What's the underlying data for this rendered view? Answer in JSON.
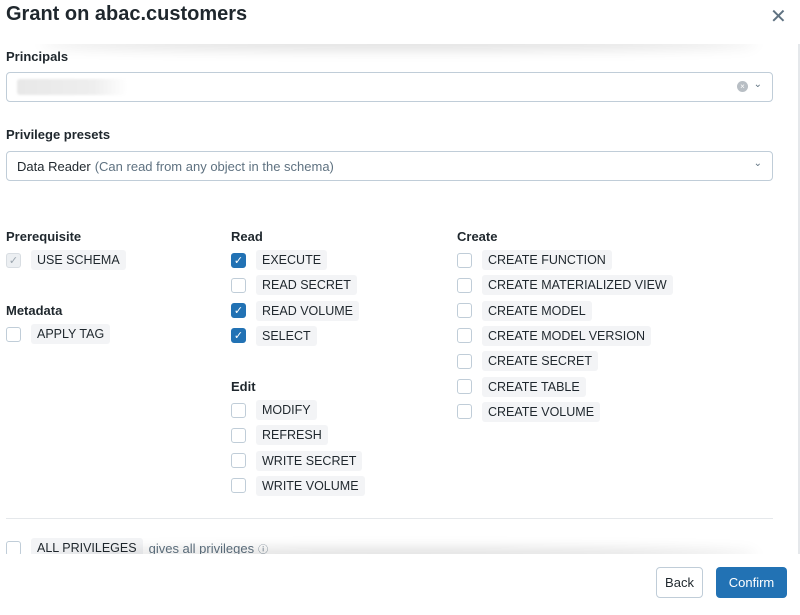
{
  "title": "Grant on abac.customers",
  "principals": {
    "label": "Principals"
  },
  "presets": {
    "label": "Privilege presets",
    "value": "Data Reader",
    "description": "(Can read from any object in the schema)"
  },
  "groups": {
    "prerequisite": {
      "title": "Prerequisite",
      "items": [
        {
          "label": "USE SCHEMA",
          "checked": true,
          "disabled": true
        }
      ]
    },
    "metadata": {
      "title": "Metadata",
      "items": [
        {
          "label": "APPLY TAG",
          "checked": false
        }
      ]
    },
    "read": {
      "title": "Read",
      "items": [
        {
          "label": "EXECUTE",
          "checked": true
        },
        {
          "label": "READ SECRET",
          "checked": false
        },
        {
          "label": "READ VOLUME",
          "checked": true
        },
        {
          "label": "SELECT",
          "checked": true
        }
      ]
    },
    "edit": {
      "title": "Edit",
      "items": [
        {
          "label": "MODIFY",
          "checked": false
        },
        {
          "label": "REFRESH",
          "checked": false
        },
        {
          "label": "WRITE SECRET",
          "checked": false
        },
        {
          "label": "WRITE VOLUME",
          "checked": false
        }
      ]
    },
    "create": {
      "title": "Create",
      "items": [
        {
          "label": "CREATE FUNCTION",
          "checked": false
        },
        {
          "label": "CREATE MATERIALIZED VIEW",
          "checked": false
        },
        {
          "label": "CREATE MODEL",
          "checked": false
        },
        {
          "label": "CREATE MODEL VERSION",
          "checked": false
        },
        {
          "label": "CREATE SECRET",
          "checked": false
        },
        {
          "label": "CREATE TABLE",
          "checked": false
        },
        {
          "label": "CREATE VOLUME",
          "checked": false
        }
      ]
    }
  },
  "all_privileges": {
    "label": "ALL PRIVILEGES",
    "description": "gives all privileges",
    "checked": false
  },
  "footer": {
    "back": "Back",
    "confirm": "Confirm"
  },
  "colors": {
    "accent": "#2272b4"
  }
}
